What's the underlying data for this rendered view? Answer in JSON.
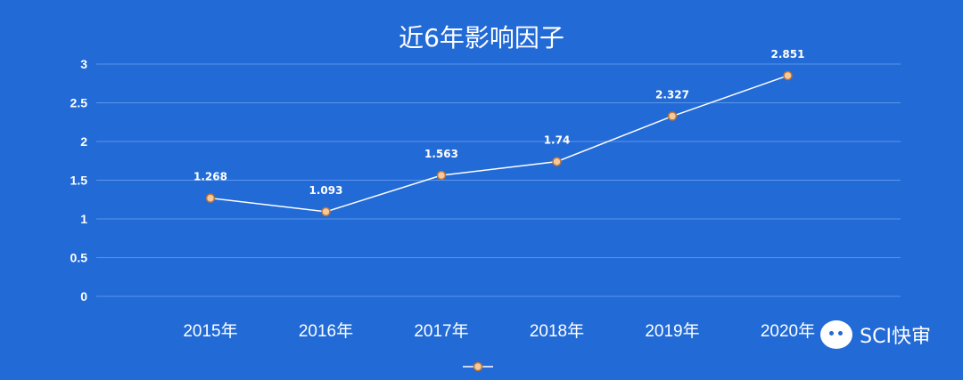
{
  "chart_data": {
    "type": "line",
    "title": "近6年影响因子",
    "categories": [
      "2015年",
      "2016年",
      "2017年",
      "2018年",
      "2019年",
      "2020年"
    ],
    "series": [
      {
        "values": [
          1.268,
          1.093,
          1.563,
          1.74,
          2.327,
          2.851
        ],
        "labels": [
          "1.268",
          "1.093",
          "1.563",
          "1.74",
          "2.327",
          "2.851"
        ]
      }
    ],
    "ylim": [
      0,
      3
    ],
    "yticks": [
      "0",
      "0.5",
      "1",
      "1.5",
      "2",
      "2.5",
      "3"
    ],
    "grid": true,
    "legend": "bottom-center",
    "colors": {
      "background": "#226ad6",
      "grid": "#5b95ec",
      "line": "#ffffff",
      "marker_fill": "#f6c99a",
      "marker_stroke": "#b8733a"
    }
  },
  "watermark": {
    "text": "SCI快审",
    "icon": "wechat-icon"
  }
}
